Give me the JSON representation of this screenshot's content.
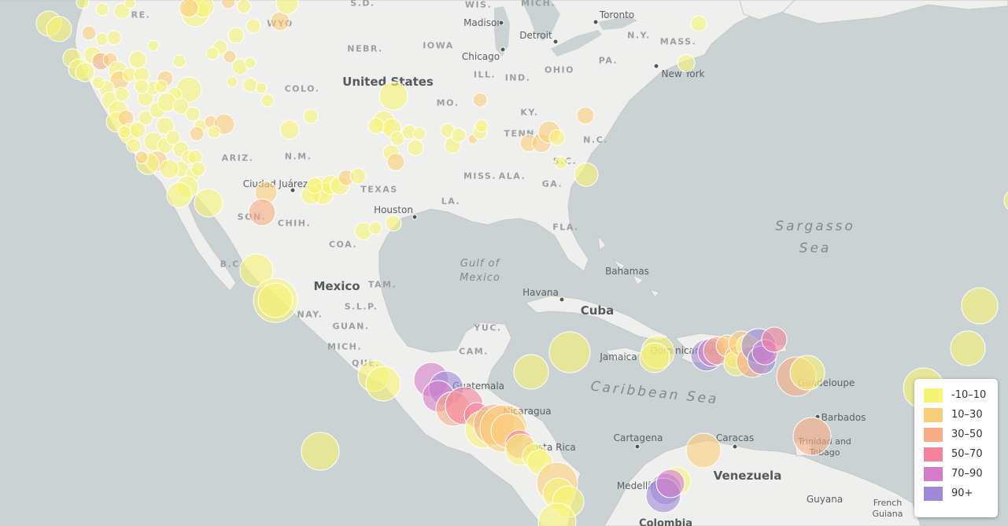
{
  "map": {
    "labels": {
      "states": [
        "WIS.",
        "MICH.",
        "S.D.",
        "NEBR.",
        "IOWA",
        "ILL.",
        "IND.",
        "OHIO",
        "PA.",
        "N.Y.",
        "MASS.",
        "COLO.",
        "MO.",
        "KY.",
        "TENN.",
        "ARIZ.",
        "N.M.",
        "TEXAS",
        "MISS.",
        "ALA.",
        "GA.",
        "N.C.",
        "S.C.",
        "LA.",
        "FLA.",
        "CHIH.",
        "COA.",
        "SON.",
        "TAM.",
        "S.L.P.",
        "NAY.",
        "GUAN.",
        "MICH.",
        "QUE.",
        "YUC.",
        "CAM.",
        "WYO",
        "B.C.",
        "RE."
      ],
      "countries": [
        "United States",
        "Mexico",
        "Cuba",
        "Venezuela"
      ],
      "cities": [
        "Madison",
        "Toronto",
        "Detroit",
        "Chicago",
        "New York",
        "Ciudad Juárez",
        "Houston",
        "Havana",
        "Bahamas",
        "Jamaica",
        "Dominican Republic",
        "Guatemala",
        "Nicaragua",
        "Costa Rica",
        "Cartagena",
        "Caracas",
        "Medellín",
        "Colombia",
        "Guyana",
        "French Guiana",
        "Guadeloupe",
        "Barbados",
        "Trinidad and Tobago"
      ],
      "seas": [
        "Sargasso",
        "Sea",
        "Caribbean Sea"
      ],
      "gulf": [
        "Gulf of",
        "Mexico"
      ]
    },
    "legend": {
      "items": [
        {
          "label": "-10–10",
          "color": "#f6f475"
        },
        {
          "label": "10–30",
          "color": "#fbcd79"
        },
        {
          "label": "30–50",
          "color": "#f7ab86"
        },
        {
          "label": "50–70",
          "color": "#f4829c"
        },
        {
          "label": "70–90",
          "color": "#d57cc9"
        },
        {
          "label": "90+",
          "color": "#9f88d7"
        }
      ]
    }
  }
}
